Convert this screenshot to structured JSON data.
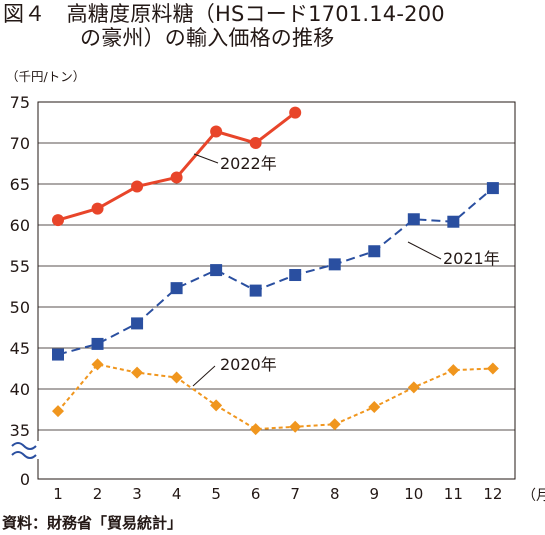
{
  "figure": {
    "title_line1": "図４　高糖度原料糖（HSコード1701.14-200",
    "title_line2": "の豪州）の輸入価格の推移",
    "unit": "（千円/トン）",
    "source": "資料：財務省「貿易統計」"
  },
  "chart_data": {
    "type": "line",
    "title": "図４　高糖度原料糖（HSコード1701.14-200の豪州）の輸入価格の推移",
    "ylabel": "（千円/トン）",
    "xlabel": "（月）",
    "x": [
      1,
      2,
      3,
      4,
      5,
      6,
      7,
      8,
      9,
      10,
      11,
      12
    ],
    "x_tick_labels": [
      "1",
      "2",
      "3",
      "4",
      "5",
      "6",
      "7",
      "8",
      "9",
      "10",
      "11",
      "12"
    ],
    "y_tick_labels": [
      "0",
      "35",
      "40",
      "45",
      "50",
      "55",
      "60",
      "65",
      "70",
      "75"
    ],
    "ylim": [
      35,
      75
    ],
    "y_axis_break": true,
    "grid": true,
    "series": [
      {
        "name": "2022年",
        "color": "#e8452a",
        "marker": "circle",
        "line": "solid",
        "values": [
          60.6,
          62.0,
          64.7,
          65.8,
          71.4,
          70.0,
          73.7,
          null,
          null,
          null,
          null,
          null
        ]
      },
      {
        "name": "2021年",
        "color": "#2a4fa0",
        "marker": "square",
        "line": "dashed",
        "values": [
          44.2,
          45.5,
          48.0,
          52.3,
          54.5,
          52.0,
          53.9,
          55.2,
          56.8,
          60.7,
          60.4,
          64.5
        ]
      },
      {
        "name": "2020年",
        "color": "#f0961e",
        "marker": "diamond",
        "line": "dotted",
        "values": [
          37.3,
          43.0,
          42.0,
          41.4,
          38.0,
          35.1,
          35.4,
          35.7,
          37.8,
          40.2,
          42.3,
          42.5
        ]
      }
    ]
  }
}
